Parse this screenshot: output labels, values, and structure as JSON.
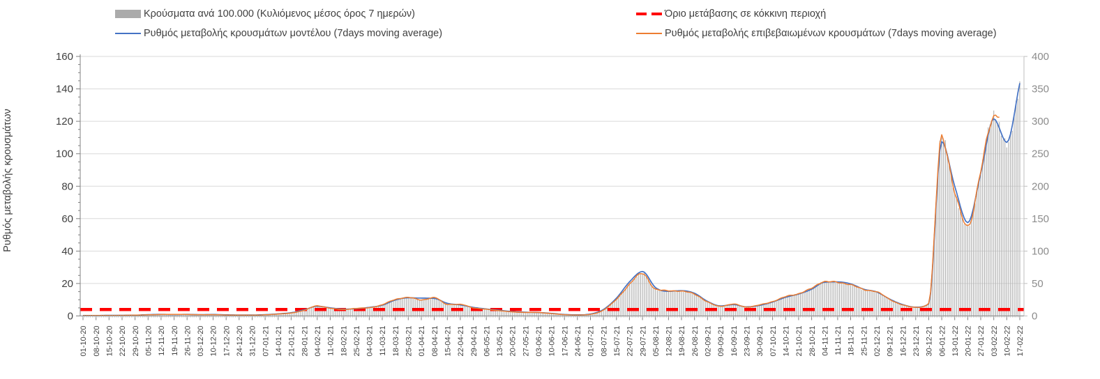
{
  "chart_data": {
    "type": "combo-bar-line",
    "x_labels": [
      "01-10-20",
      "08-10-20",
      "15-10-20",
      "22-10-20",
      "29-10-20",
      "05-11-20",
      "12-11-20",
      "19-11-20",
      "26-11-20",
      "03-12-20",
      "10-12-20",
      "17-12-20",
      "24-12-20",
      "31-12-20",
      "07-01-21",
      "14-01-21",
      "21-01-21",
      "28-01-21",
      "04-02-21",
      "11-02-21",
      "18-02-21",
      "25-02-21",
      "04-03-21",
      "11-03-21",
      "18-03-21",
      "25-03-21",
      "01-04-21",
      "08-04-21",
      "15-04-21",
      "22-04-21",
      "29-04-21",
      "06-05-21",
      "13-05-21",
      "20-05-21",
      "27-05-21",
      "03-06-21",
      "10-06-21",
      "17-06-21",
      "24-06-21",
      "01-07-21",
      "08-07-21",
      "15-07-21",
      "22-07-21",
      "29-07-21",
      "05-08-21",
      "12-08-21",
      "19-08-21",
      "26-08-21",
      "02-09-21",
      "09-09-21",
      "16-09-21",
      "23-09-21",
      "30-09-21",
      "07-10-21",
      "14-10-21",
      "21-10-21",
      "28-10-21",
      "04-11-21",
      "11-11-21",
      "18-11-21",
      "25-11-21",
      "02-12-21",
      "09-12-21",
      "16-12-21",
      "23-12-21",
      "30-12-21",
      "06-01-22",
      "13-01-22",
      "20-01-22",
      "27-01-22",
      "03-02-22",
      "10-02-22",
      "17-02-22"
    ],
    "y_left": {
      "title": "Ρυθμός μεταβολής κρουσμάτων",
      "min": 0,
      "max": 160,
      "ticks": [
        0,
        20,
        40,
        60,
        80,
        100,
        120,
        140,
        160
      ]
    },
    "y_right": {
      "min": 0,
      "max": 400,
      "ticks": [
        0,
        50,
        100,
        150,
        200,
        250,
        300,
        350,
        400
      ]
    },
    "series": [
      {
        "name": "Κρούσματα ανά 100.000 (Κυλιόμενος μέσος όρος 7 ημερών)",
        "type": "bar",
        "axis": "right",
        "color": "#b1b1b1",
        "values": [
          0.5,
          0.7,
          0.8,
          1.0,
          1.2,
          1.8,
          2.2,
          2.5,
          2.2,
          2.0,
          2.0,
          1.5,
          1.2,
          1.2,
          1.8,
          3.0,
          4.5,
          8.8,
          15.5,
          12.0,
          10.0,
          11.8,
          12.8,
          17.2,
          25.5,
          28.5,
          24.8,
          28.2,
          18.0,
          17.8,
          12.5,
          10.2,
          8.2,
          6.2,
          5.5,
          5.2,
          3.8,
          2.0,
          1.5,
          2.5,
          9.0,
          25.8,
          48.8,
          65.8,
          41.0,
          39.0,
          38.0,
          34.0,
          21.5,
          15.0,
          18.2,
          13.8,
          17.0,
          22.2,
          29.8,
          34.5,
          42.5,
          53.2,
          51.5,
          48.5,
          40.5,
          37.5,
          25.5,
          17.0,
          13.2,
          19.5,
          277.5,
          190.0,
          139.0,
          222.5,
          309.0,
          265.0,
          358.0
        ]
      },
      {
        "name": "Ρυθμός μεταβολής κρουσμάτων μοντέλου (7days moving average)",
        "type": "line",
        "axis": "left",
        "color": "#4472C4",
        "values": [
          0.3,
          0.3,
          0.4,
          0.4,
          0.5,
          0.8,
          1.0,
          0.9,
          1.0,
          0.8,
          0.9,
          0.7,
          0.6,
          0.6,
          0.8,
          1.3,
          2.0,
          3.8,
          6.0,
          5.0,
          4.2,
          4.5,
          5.3,
          6.6,
          9.8,
          11.2,
          11.0,
          10.8,
          7.8,
          6.8,
          5.3,
          4.3,
          3.5,
          2.7,
          2.3,
          2.1,
          1.6,
          0.9,
          0.7,
          1.2,
          4.0,
          11.0,
          21.0,
          27.4,
          17.5,
          15.2,
          15.6,
          14.0,
          9.0,
          6.2,
          7.0,
          5.6,
          6.5,
          8.6,
          11.5,
          13.5,
          16.5,
          20.8,
          21.0,
          19.8,
          16.5,
          14.8,
          10.4,
          7.0,
          5.4,
          7.5,
          107.5,
          80.0,
          57.5,
          88.0,
          121.5,
          107.0,
          143.5
        ]
      },
      {
        "name": "Ρυθμός μεταβολής επιβεβαιωμένων κρουσμάτων (7days moving average)",
        "type": "line",
        "axis": "left",
        "color": "#ED7D31",
        "values": [
          0.2,
          0.3,
          0.3,
          0.4,
          0.5,
          0.7,
          0.9,
          1.0,
          0.9,
          0.8,
          0.8,
          0.6,
          0.5,
          0.5,
          0.7,
          1.2,
          1.8,
          3.5,
          6.2,
          4.8,
          4.0,
          4.7,
          5.1,
          6.9,
          10.2,
          11.4,
          9.9,
          11.3,
          7.2,
          7.1,
          5.0,
          4.1,
          3.3,
          2.5,
          2.2,
          2.1,
          1.5,
          0.8,
          0.6,
          1.0,
          3.6,
          10.3,
          19.5,
          26.3,
          16.4,
          15.6,
          15.2,
          13.6,
          8.6,
          6.0,
          7.3,
          5.5,
          6.8,
          8.9,
          11.9,
          13.8,
          17.0,
          21.3,
          20.6,
          19.4,
          16.2,
          15.0,
          10.2,
          6.8,
          5.3,
          7.8,
          111.0,
          76.0,
          55.5,
          89.0,
          123.5,
          125.5,
          null
        ]
      }
    ],
    "threshold": {
      "label": "Όριο μετάβασης σε κόκκινη περιοχή",
      "axis": "left",
      "value": 4,
      "value_right_axis": 10,
      "color": "#FF0000",
      "style": "dashed"
    },
    "colors": {
      "grid": "#d9d9d9",
      "axis": "#808080",
      "axis_right": "#bfbfbf",
      "tick_label_left": "#404040",
      "tick_label_right": "#8c8c8c",
      "tick_label_x": "#3f3f3f",
      "daily_tick": "#a6a6a6"
    },
    "grid": "horizontal-major",
    "legend_position": "top-two-columns"
  },
  "legend": {
    "items": [
      {
        "swatch": "bar-gray"
      },
      {
        "swatch": "line-blue"
      },
      {
        "swatch": "dash-red"
      },
      {
        "swatch": "line-orange"
      }
    ]
  }
}
